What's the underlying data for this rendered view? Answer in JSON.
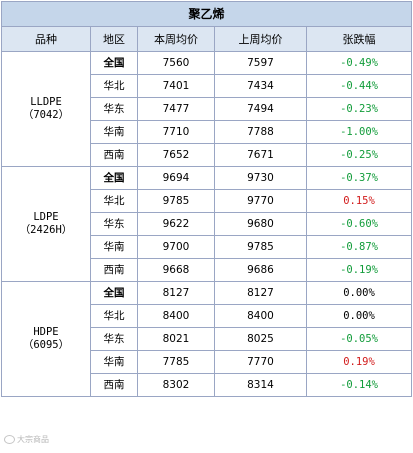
{
  "title": "聚乙烯",
  "headers": {
    "product": "品种",
    "region": "地区",
    "this_week": "本周均价",
    "last_week": "上周均价",
    "change": "张跌幅"
  },
  "groups": [
    {
      "name": "LLDPE",
      "code": "（7042）",
      "rows": [
        {
          "region": "全国",
          "this_week": "7560",
          "last_week": "7597",
          "change": "-0.49%",
          "trend": "neg"
        },
        {
          "region": "华北",
          "this_week": "7401",
          "last_week": "7434",
          "change": "-0.44%",
          "trend": "neg"
        },
        {
          "region": "华东",
          "this_week": "7477",
          "last_week": "7494",
          "change": "-0.23%",
          "trend": "neg"
        },
        {
          "region": "华南",
          "this_week": "7710",
          "last_week": "7788",
          "change": "-1.00%",
          "trend": "neg"
        },
        {
          "region": "西南",
          "this_week": "7652",
          "last_week": "7671",
          "change": "-0.25%",
          "trend": "neg"
        }
      ]
    },
    {
      "name": "LDPE",
      "code": "（2426H）",
      "rows": [
        {
          "region": "全国",
          "this_week": "9694",
          "last_week": "9730",
          "change": "-0.37%",
          "trend": "neg"
        },
        {
          "region": "华北",
          "this_week": "9785",
          "last_week": "9770",
          "change": "0.15%",
          "trend": "pos"
        },
        {
          "region": "华东",
          "this_week": "9622",
          "last_week": "9680",
          "change": "-0.60%",
          "trend": "neg"
        },
        {
          "region": "华南",
          "this_week": "9700",
          "last_week": "9785",
          "change": "-0.87%",
          "trend": "neg"
        },
        {
          "region": "西南",
          "this_week": "9668",
          "last_week": "9686",
          "change": "-0.19%",
          "trend": "neg"
        }
      ]
    },
    {
      "name": "HDPE",
      "code": "（6095）",
      "rows": [
        {
          "region": "全国",
          "this_week": "8127",
          "last_week": "8127",
          "change": "0.00%",
          "trend": "zero"
        },
        {
          "region": "华北",
          "this_week": "8400",
          "last_week": "8400",
          "change": "0.00%",
          "trend": "zero"
        },
        {
          "region": "华东",
          "this_week": "8021",
          "last_week": "8025",
          "change": "-0.05%",
          "trend": "neg"
        },
        {
          "region": "华南",
          "this_week": "7785",
          "last_week": "7770",
          "change": "0.19%",
          "trend": "pos"
        },
        {
          "region": "西南",
          "this_week": "8302",
          "last_week": "8314",
          "change": "-0.14%",
          "trend": "neg"
        }
      ]
    }
  ],
  "colors": {
    "negative": "#129c3a",
    "positive": "#d21c1c",
    "title_bg": "#c5d6ea",
    "header_bg": "#dce6f2"
  },
  "watermark": {
    "icon": "weibo-logo-icon",
    "text": "大宗商品"
  }
}
